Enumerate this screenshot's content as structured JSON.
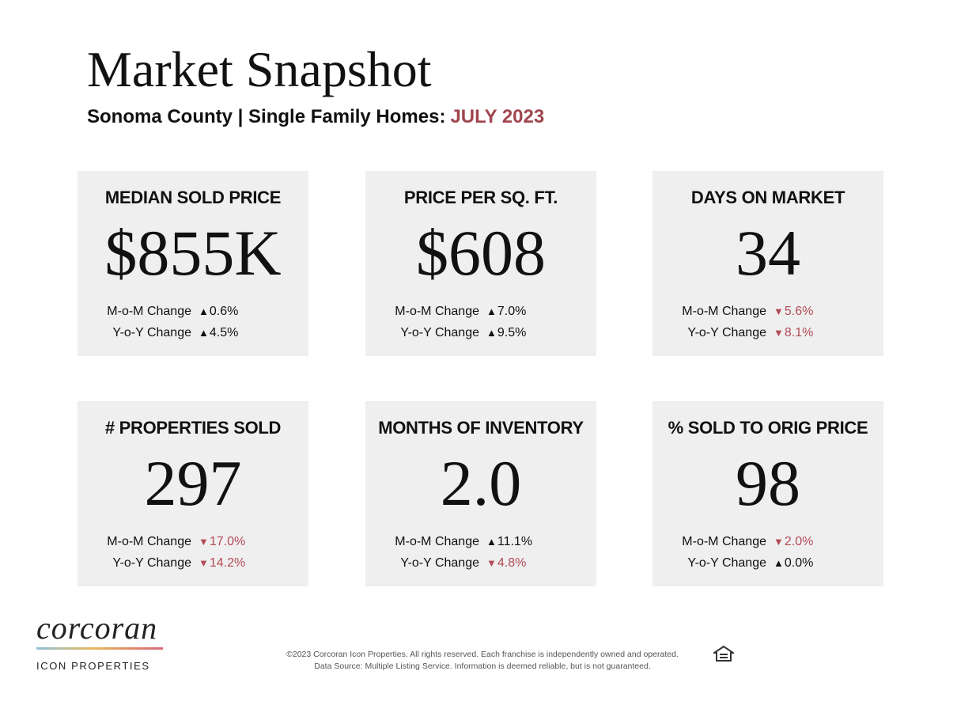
{
  "header": {
    "title": "Market Snapshot",
    "subtitle": "Sonoma County | Single Family Homes:",
    "period": "JULY 2023"
  },
  "colors": {
    "accent": "#a0464f",
    "down": "#b34a55",
    "card_bg": "#efefef"
  },
  "cards": [
    {
      "label": "MEDIAN SOLD PRICE",
      "value": "$855K",
      "mom": {
        "label": "M-o-M Change",
        "arrow": "▲",
        "value": "0.6%",
        "direction": "up"
      },
      "yoy": {
        "label": "Y-o-Y Change",
        "arrow": "▲",
        "value": "4.5%",
        "direction": "up"
      }
    },
    {
      "label": "PRICE PER SQ. FT.",
      "value": "$608",
      "mom": {
        "label": "M-o-M Change",
        "arrow": "▲",
        "value": "7.0%",
        "direction": "up"
      },
      "yoy": {
        "label": "Y-o-Y Change",
        "arrow": "▲",
        "value": "9.5%",
        "direction": "up"
      }
    },
    {
      "label": "DAYS ON MARKET",
      "value": "34",
      "mom": {
        "label": "M-o-M Change",
        "arrow": "▼",
        "value": "5.6%",
        "direction": "down"
      },
      "yoy": {
        "label": "Y-o-Y Change",
        "arrow": "▼",
        "value": "8.1%",
        "direction": "down"
      }
    },
    {
      "label": "# PROPERTIES SOLD",
      "value": "297",
      "mom": {
        "label": "M-o-M Change",
        "arrow": "▼",
        "value": "17.0%",
        "direction": "down"
      },
      "yoy": {
        "label": "Y-o-Y Change",
        "arrow": "▼",
        "value": "14.2%",
        "direction": "down"
      }
    },
    {
      "label": "MONTHS OF INVENTORY",
      "value": "2.0",
      "mom": {
        "label": "M-o-M Change",
        "arrow": "▲",
        "value": "11.1%",
        "direction": "up"
      },
      "yoy": {
        "label": "Y-o-Y Change",
        "arrow": "▼",
        "value": "4.8%",
        "direction": "down"
      }
    },
    {
      "label": "% SOLD TO ORIG PRICE",
      "value": "98",
      "mom": {
        "label": "M-o-M Change",
        "arrow": "▼",
        "value": "2.0%",
        "direction": "down"
      },
      "yoy": {
        "label": "Y-o-Y Change",
        "arrow": "▲",
        "value": "0.0%",
        "direction": "up"
      }
    }
  ],
  "logo": {
    "wordmark": "corcoran",
    "sub": "ICON PROPERTIES"
  },
  "footer": {
    "line1": "©2023 Corcoran Icon Properties. All rights reserved. Each franchise is independently owned and operated.",
    "line2": "Data Source: Multiple Listing Service. Information is deemed reliable, but is not guaranteed.",
    "eho_icon": "equal-housing-opportunity-icon"
  }
}
